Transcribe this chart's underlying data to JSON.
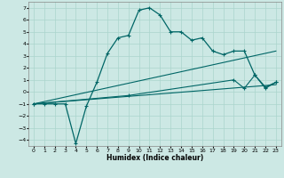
{
  "xlabel": "Humidex (Indice chaleur)",
  "bg_color": "#cce8e4",
  "grid_color": "#aad4cc",
  "line_color": "#006666",
  "x_ticks": [
    0,
    1,
    2,
    3,
    4,
    5,
    6,
    7,
    8,
    9,
    10,
    11,
    12,
    13,
    14,
    15,
    16,
    17,
    18,
    19,
    20,
    21,
    22,
    23
  ],
  "ylim": [
    -4.5,
    7.5
  ],
  "xlim": [
    -0.5,
    23.5
  ],
  "yticks": [
    -4,
    -3,
    -2,
    -1,
    0,
    1,
    2,
    3,
    4,
    5,
    6,
    7
  ],
  "curve1_x": [
    0,
    1,
    2,
    3,
    4,
    5,
    6,
    7,
    8,
    9,
    10,
    11,
    12,
    13,
    14,
    15,
    16,
    17,
    18,
    19,
    20,
    21,
    22,
    23
  ],
  "curve1_y": [
    -1,
    -1,
    -1,
    -1,
    -4.3,
    -1.2,
    0.8,
    3.2,
    4.5,
    4.7,
    6.8,
    7.0,
    6.4,
    5.0,
    5.0,
    4.3,
    4.5,
    3.4,
    3.1,
    3.4,
    3.4,
    1.4,
    0.4,
    0.8
  ],
  "curve2_x": [
    0,
    23
  ],
  "curve2_y": [
    -1.0,
    3.4
  ],
  "curve3_x": [
    0,
    23
  ],
  "curve3_y": [
    -1.0,
    0.6
  ],
  "curve4_x": [
    0,
    9,
    19,
    20,
    21,
    22,
    23
  ],
  "curve4_y": [
    -1.0,
    -0.3,
    1.0,
    0.3,
    1.4,
    0.3,
    0.8
  ]
}
